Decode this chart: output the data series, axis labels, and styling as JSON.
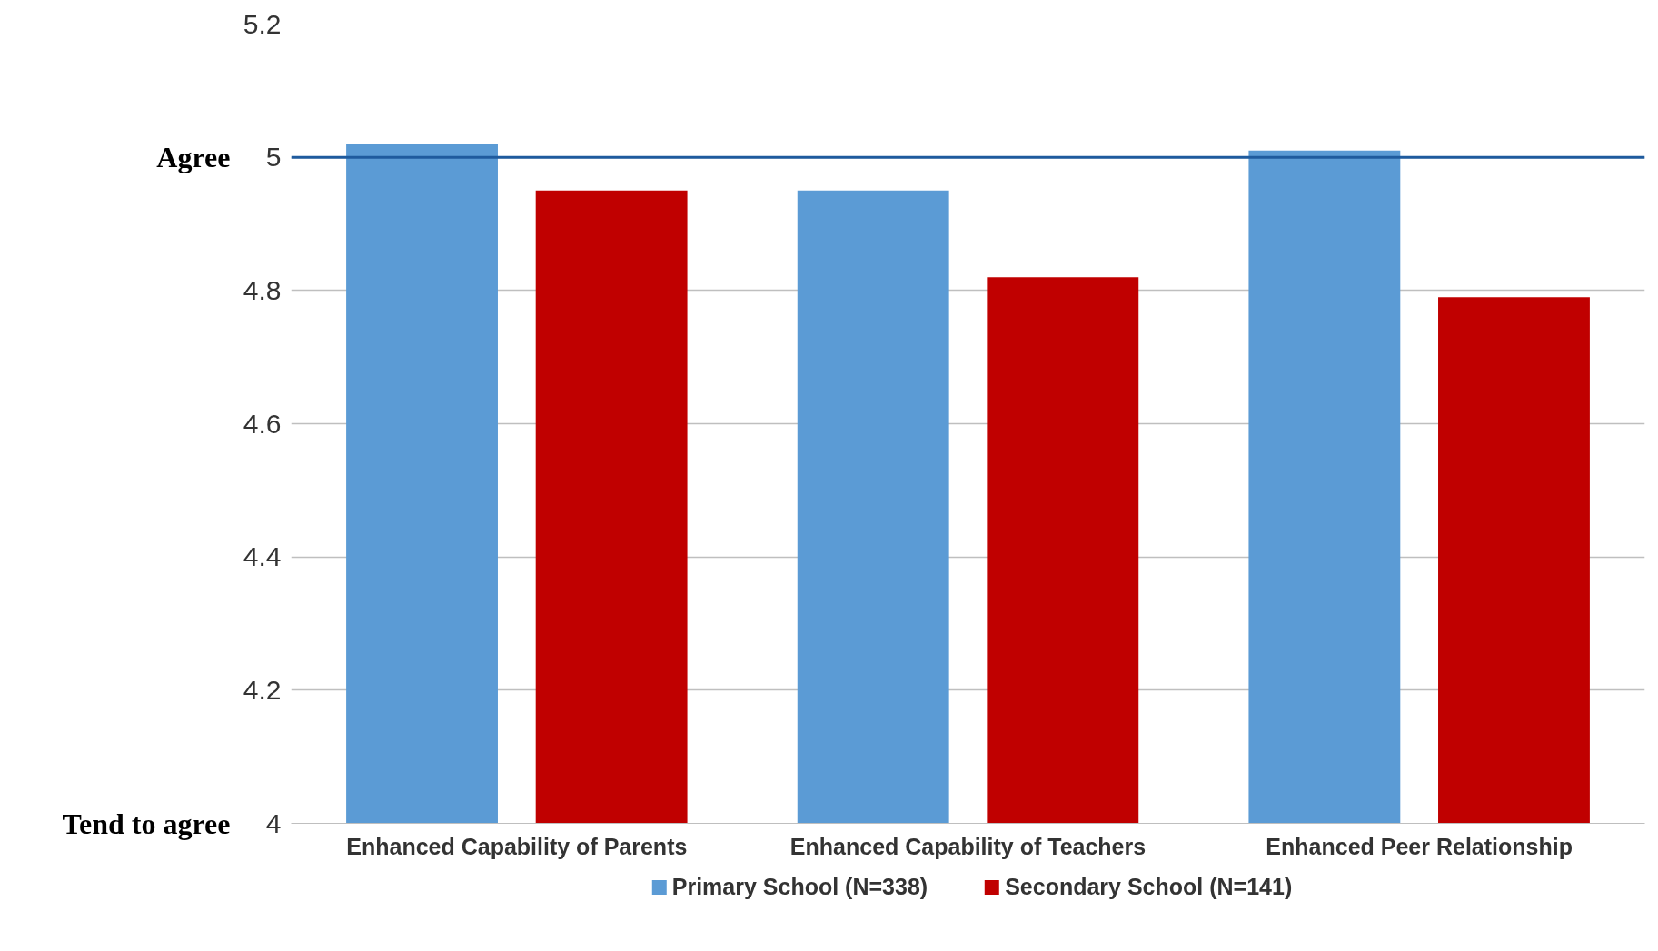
{
  "chart_data": {
    "type": "bar",
    "categories": [
      "Enhanced Capability of Parents",
      "Enhanced Capability of Teachers",
      "Enhanced Peer Relationship"
    ],
    "series": [
      {
        "name": "Primary School (N=338)",
        "color": "#5b9bd5",
        "values": [
          5.02,
          4.95,
          5.01
        ]
      },
      {
        "name": "Secondary School (N=141)",
        "color": "#c00000",
        "values": [
          4.95,
          4.82,
          4.79
        ]
      }
    ],
    "ylim": [
      4,
      5.2
    ],
    "yticks": [
      4,
      4.2,
      4.4,
      4.6,
      4.8,
      5,
      5.2
    ],
    "ref_lines": [
      {
        "axis": "y",
        "value": 5,
        "label": "Agree",
        "color": "#1f5b9e"
      }
    ],
    "annotations": [
      "Tend to agree"
    ],
    "grid": "y",
    "legend": "bottom"
  }
}
